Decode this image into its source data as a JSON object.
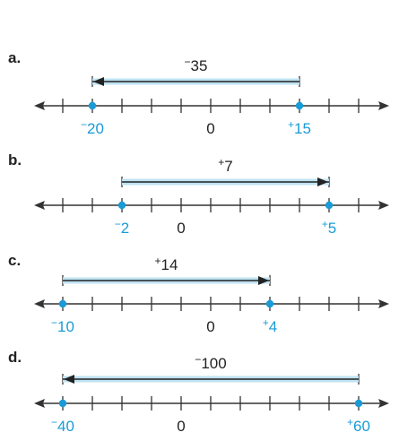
{
  "accent_color": "#1a9bd7",
  "bar_fill": "#bfe3f2",
  "problems": [
    {
      "label": "a.",
      "arrow_text": "⁻35",
      "arrow_dir": "left",
      "points": [
        {
          "value": -20,
          "text": "⁻20"
        },
        {
          "value": 15,
          "text": "⁺15"
        }
      ],
      "zero_text": "0"
    },
    {
      "label": "b.",
      "arrow_text": "⁺7",
      "arrow_dir": "right",
      "points": [
        {
          "value": -2,
          "text": "⁻2"
        },
        {
          "value": 5,
          "text": "⁺5"
        }
      ],
      "zero_text": "0"
    },
    {
      "label": "c.",
      "arrow_text": "⁺14",
      "arrow_dir": "right",
      "points": [
        {
          "value": -10,
          "text": "⁻10"
        },
        {
          "value": 4,
          "text": "⁺4"
        }
      ],
      "zero_text": "0"
    },
    {
      "label": "d.",
      "arrow_text": "⁻100",
      "arrow_dir": "left",
      "points": [
        {
          "value": -40,
          "text": "⁻40"
        },
        {
          "value": 60,
          "text": "⁺60"
        }
      ],
      "zero_text": "0"
    }
  ]
}
